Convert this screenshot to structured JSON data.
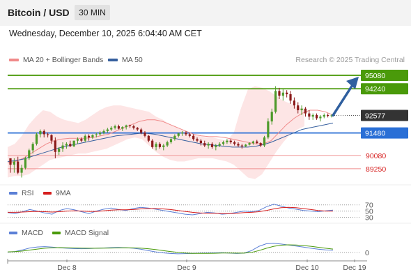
{
  "header": {
    "title": "Bitcoin / USD",
    "timeframe": "30 MIN"
  },
  "subtitle": "Wednesday, December 10, 2025 6:04:40 AM CET",
  "legend": {
    "ma20_label": "MA 20 + Bollinger Bands",
    "ma50_label": "MA 50",
    "copyright": "Research © 2025 Trading Central"
  },
  "rsi_legend": {
    "rsi_label": "RSI",
    "ma_label": "9MA"
  },
  "macd_legend": {
    "macd_label": "MACD",
    "signal_label": "MACD Signal"
  },
  "colors": {
    "resistance": "#4a9a0a",
    "support": "#2a6fd6",
    "lower": "#f2a0a0",
    "lower_text": "#d61e1e",
    "current": "#333333",
    "ma20": "#f08a8a",
    "ma50": "#365f9e",
    "band_fill": "#fde0e0",
    "arrow": "#2f5f9f",
    "rsi": "#5b7fd6",
    "rsi_ma": "#d61e1e",
    "macd": "#5b7fd6",
    "macd_signal": "#4a9a0a"
  },
  "chart_data": [
    {
      "type": "candlestick",
      "symbol": "Bitcoin / USD",
      "interval": "30 MIN",
      "x_ticks": [
        "Dec 8",
        "Dec 9",
        "Dec 10",
        "Dec 19"
      ],
      "ylim": [
        88200,
        95600
      ],
      "levels": [
        {
          "value": 95080,
          "label": "95080",
          "kind": "resistance"
        },
        {
          "value": 94240,
          "label": "94240",
          "kind": "resistance"
        },
        {
          "value": 92577,
          "label": "92577",
          "kind": "current"
        },
        {
          "value": 91480,
          "label": "91480",
          "kind": "support"
        },
        {
          "value": 90080,
          "label": "90080",
          "kind": "lower"
        },
        {
          "value": 89250,
          "label": "89250",
          "kind": "lower"
        }
      ],
      "series": [
        {
          "name": "MA 20",
          "values": [
            89600,
            89700,
            89900,
            90200,
            90500,
            90800,
            91000,
            91100,
            91150,
            91150,
            91150,
            91200,
            91300,
            91400,
            91600,
            91800,
            92000,
            92200,
            92300,
            92300,
            92200,
            92000,
            91800,
            91600,
            91400,
            91300,
            91250,
            91250,
            91200,
            91100,
            91000,
            90900,
            90800,
            90800,
            91000,
            91500,
            92000,
            92400,
            92700,
            92900,
            92900,
            92800,
            92600
          ]
        },
        {
          "name": "MA 50",
          "values": [
            89700,
            89750,
            89850,
            90000,
            90150,
            90300,
            90450,
            90600,
            90700,
            90800,
            90900,
            91000,
            91100,
            91200,
            91300,
            91350,
            91400,
            91450,
            91450,
            91400,
            91300,
            91200,
            91100,
            91000,
            90900,
            90800,
            90750,
            90700,
            90650,
            90600,
            90600,
            90600,
            90650,
            90750,
            90900,
            91100,
            91300,
            91500,
            91700,
            91800,
            91900,
            92000,
            92100
          ]
        }
      ],
      "bollinger": {
        "upper": [
          90600,
          90800,
          91300,
          92000,
          92500,
          92900,
          92800,
          92500,
          92300,
          92200,
          92100,
          92300,
          92600,
          92900,
          93100,
          93200,
          93200,
          93100,
          93000,
          92900,
          92800,
          92500,
          92300,
          92000,
          91800,
          91600,
          91400,
          91300,
          91200,
          91200,
          91100,
          91000,
          91500,
          93000,
          94200,
          94400,
          94300,
          94100,
          93800,
          93500,
          93300,
          93100,
          93000
        ],
        "lower": [
          88700,
          88800,
          88800,
          88900,
          89200,
          89500,
          89800,
          89900,
          90000,
          90100,
          90200,
          90200,
          90300,
          90400,
          90500,
          90700,
          90900,
          91100,
          91200,
          91100,
          90700,
          90300,
          90000,
          89800,
          89700,
          89700,
          89800,
          89900,
          89900,
          89900,
          89800,
          89700,
          89500,
          89100,
          88700,
          88600,
          88900,
          89600,
          90300,
          90900,
          91400,
          91700,
          91900
        ]
      },
      "candles": [
        [
          89900,
          89900,
          89000,
          89500
        ],
        [
          89500,
          89900,
          89000,
          89700
        ],
        [
          89700,
          90000,
          88900,
          89000
        ],
        [
          89000,
          89500,
          88700,
          89300
        ],
        [
          89300,
          90000,
          89200,
          89900
        ],
        [
          89900,
          90500,
          89800,
          90400
        ],
        [
          90400,
          90900,
          90200,
          90800
        ],
        [
          90800,
          91500,
          90700,
          91400
        ],
        [
          91400,
          91700,
          91200,
          91600
        ],
        [
          91600,
          91700,
          91200,
          91400
        ],
        [
          91400,
          91500,
          91200,
          91350
        ],
        [
          91350,
          91400,
          90800,
          91000
        ],
        [
          91000,
          91200,
          89900,
          90300
        ],
        [
          90300,
          90600,
          90100,
          90500
        ],
        [
          90500,
          90900,
          90300,
          90700
        ],
        [
          90700,
          90900,
          90500,
          90800
        ],
        [
          90800,
          91000,
          90600,
          90650
        ],
        [
          90650,
          91000,
          90600,
          91000
        ],
        [
          91000,
          91200,
          90800,
          91100
        ],
        [
          91100,
          91200,
          90900,
          91000
        ],
        [
          91000,
          91400,
          90900,
          91300
        ],
        [
          91300,
          91400,
          91000,
          91200
        ],
        [
          91200,
          91400,
          91100,
          91350
        ],
        [
          91350,
          91500,
          91200,
          91400
        ],
        [
          91400,
          91600,
          91300,
          91500
        ],
        [
          91500,
          91700,
          91400,
          91600
        ],
        [
          91600,
          91800,
          91500,
          91700
        ],
        [
          91700,
          91900,
          91600,
          91800
        ],
        [
          91800,
          92000,
          91700,
          91900
        ],
        [
          91900,
          92000,
          91700,
          91750
        ],
        [
          91750,
          91900,
          91600,
          91850
        ],
        [
          91850,
          92000,
          91700,
          91950
        ],
        [
          91950,
          92000,
          91800,
          91900
        ],
        [
          91900,
          92000,
          91700,
          91800
        ],
        [
          91800,
          91850,
          91600,
          91700
        ],
        [
          91700,
          91800,
          91400,
          91500
        ],
        [
          91500,
          91600,
          91200,
          91300
        ],
        [
          91300,
          91350,
          90900,
          91000
        ],
        [
          91000,
          91100,
          90500,
          90600
        ],
        [
          90600,
          90900,
          90400,
          90800
        ],
        [
          90800,
          90900,
          90500,
          90600
        ],
        [
          90600,
          90800,
          90400,
          90700
        ],
        [
          90700,
          91000,
          90600,
          90900
        ],
        [
          90900,
          91200,
          90800,
          91100
        ],
        [
          91100,
          91400,
          91000,
          91300
        ],
        [
          91300,
          91500,
          91200,
          91450
        ],
        [
          91450,
          91600,
          91300,
          91500
        ],
        [
          91500,
          91600,
          91300,
          91400
        ],
        [
          91400,
          91500,
          91200,
          91300
        ],
        [
          91300,
          91400,
          91000,
          91100
        ],
        [
          91100,
          91200,
          90900,
          91000
        ],
        [
          91000,
          91100,
          90700,
          90850
        ],
        [
          90850,
          91000,
          90600,
          90700
        ],
        [
          90700,
          90900,
          90500,
          90800
        ],
        [
          90800,
          90900,
          90500,
          90600
        ],
        [
          90600,
          90800,
          90400,
          90700
        ],
        [
          90700,
          90900,
          90600,
          90800
        ],
        [
          90800,
          91000,
          90700,
          90900
        ],
        [
          90900,
          91100,
          90800,
          91000
        ],
        [
          91000,
          91100,
          90800,
          90900
        ],
        [
          90900,
          91000,
          90700,
          90800
        ],
        [
          90800,
          90900,
          90600,
          90700
        ],
        [
          90700,
          90800,
          90500,
          90650
        ],
        [
          90650,
          90800,
          90600,
          90750
        ],
        [
          90750,
          90900,
          90700,
          90850
        ],
        [
          90850,
          91000,
          90750,
          90950
        ],
        [
          90950,
          91050,
          90800,
          90850
        ],
        [
          90850,
          90900,
          90600,
          90700
        ],
        [
          90700,
          91300,
          90600,
          91200
        ],
        [
          91200,
          92400,
          91100,
          92200
        ],
        [
          92200,
          93000,
          92000,
          92800
        ],
        [
          92800,
          94400,
          92700,
          94100
        ],
        [
          94100,
          94300,
          93600,
          93800
        ],
        [
          93800,
          94200,
          93500,
          94000
        ],
        [
          94000,
          94150,
          93700,
          93900
        ],
        [
          93900,
          94100,
          93300,
          93500
        ],
        [
          93500,
          93700,
          93000,
          93200
        ],
        [
          93200,
          93400,
          92700,
          92900
        ],
        [
          92900,
          93200,
          92600,
          93000
        ],
        [
          93000,
          93100,
          92500,
          92700
        ],
        [
          92700,
          92900,
          92300,
          92500
        ],
        [
          92500,
          92700,
          92300,
          92600
        ],
        [
          92600,
          92700,
          92300,
          92400
        ],
        [
          92400,
          92600,
          92200,
          92500
        ],
        [
          92500,
          92700,
          92400,
          92600
        ],
        [
          92600,
          92700,
          92450,
          92550
        ],
        [
          92550,
          92650,
          92450,
          92577
        ]
      ],
      "projection": {
        "from": 92577,
        "to": 95080
      }
    },
    {
      "type": "line",
      "title": "RSI",
      "y_ticks": [
        70,
        50,
        30
      ],
      "series": [
        {
          "name": "RSI",
          "values": [
            45,
            42,
            48,
            55,
            50,
            44,
            40,
            52,
            58,
            54,
            48,
            42,
            50,
            56,
            60,
            55,
            52,
            58,
            62,
            60,
            56,
            52,
            48,
            44,
            40,
            38,
            42,
            46,
            44,
            40,
            42,
            46,
            50,
            48,
            52,
            64,
            72,
            66,
            60,
            56,
            52,
            50,
            48,
            51,
            53
          ]
        },
        {
          "name": "9MA",
          "values": [
            46,
            46,
            47,
            48,
            49,
            48,
            47,
            48,
            50,
            51,
            50,
            49,
            49,
            51,
            53,
            54,
            54,
            55,
            57,
            58,
            58,
            57,
            55,
            52,
            49,
            46,
            44,
            43,
            43,
            42,
            42,
            43,
            45,
            46,
            48,
            52,
            57,
            61,
            62,
            61,
            58,
            55,
            52,
            50,
            50
          ]
        }
      ]
    },
    {
      "type": "line",
      "title": "MACD",
      "y_ticks": [
        0
      ],
      "series": [
        {
          "name": "MACD",
          "values": [
            20,
            60,
            160,
            280,
            340,
            360,
            330,
            290,
            260,
            240,
            230,
            240,
            260,
            280,
            300,
            310,
            290,
            260,
            200,
            120,
            40,
            -20,
            -60,
            -80,
            -70,
            -50,
            -40,
            -30,
            -20,
            -10,
            -40,
            -60,
            -40,
            120,
            380,
            540,
            560,
            520,
            460,
            400,
            330,
            260,
            200,
            160,
            140
          ]
        },
        {
          "name": "MACD Signal",
          "values": [
            40,
            50,
            90,
            150,
            210,
            260,
            290,
            300,
            290,
            280,
            270,
            260,
            260,
            265,
            275,
            285,
            290,
            285,
            265,
            230,
            180,
            120,
            60,
            10,
            -30,
            -50,
            -55,
            -50,
            -45,
            -35,
            -35,
            -40,
            -40,
            10,
            120,
            260,
            380,
            450,
            470,
            460,
            430,
            380,
            320,
            260,
            210
          ]
        }
      ]
    }
  ]
}
